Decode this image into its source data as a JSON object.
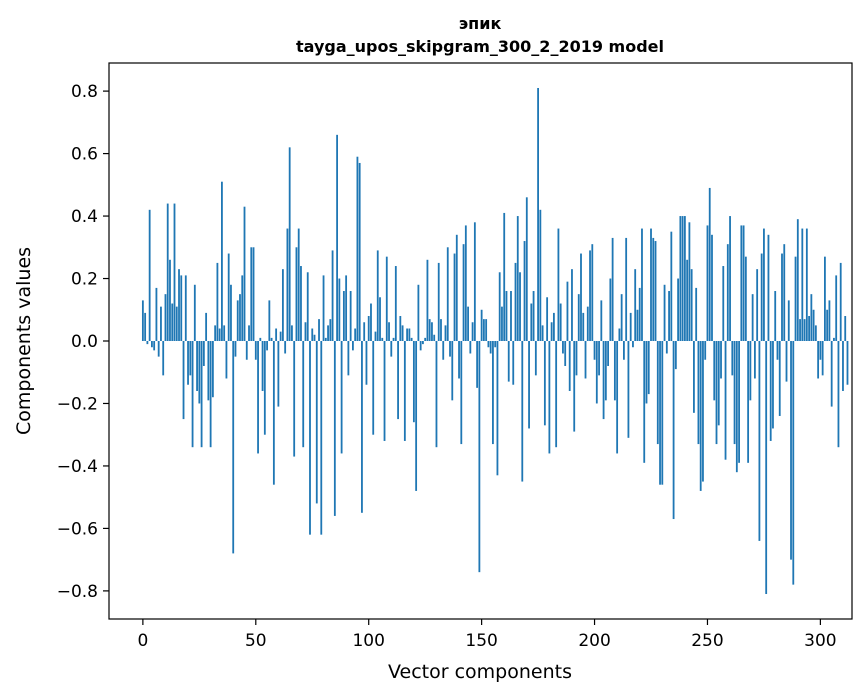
{
  "chart_data": {
    "type": "bar",
    "title_line1": "эпик",
    "title_line2": "tayga_upos_skipgram_300_2_2019 model",
    "xlabel": "Vector components",
    "ylabel": "Components values",
    "xlim": [
      -15,
      314
    ],
    "ylim": [
      -0.89,
      0.89
    ],
    "xticks": [
      0,
      50,
      100,
      150,
      200,
      250,
      300
    ],
    "xtick_labels": [
      "0",
      "50",
      "100",
      "150",
      "200",
      "250",
      "300"
    ],
    "yticks": [
      0.8,
      0.6,
      0.4,
      0.2,
      0.0,
      -0.2,
      -0.4,
      -0.6,
      -0.8
    ],
    "ytick_labels": [
      "0.8",
      "0.6",
      "0.4",
      "0.2",
      "0.0",
      "−0.2",
      "−0.4",
      "−0.6",
      "−0.8"
    ],
    "bar_color": "#1f77b4",
    "values": [
      0.13,
      0.09,
      -0.01,
      0.42,
      -0.02,
      -0.03,
      0.17,
      -0.05,
      0.11,
      -0.11,
      0.15,
      0.44,
      0.26,
      0.12,
      0.44,
      0.11,
      0.23,
      0.21,
      -0.25,
      0.21,
      -0.14,
      -0.11,
      -0.34,
      0.18,
      -0.16,
      -0.2,
      -0.34,
      -0.08,
      0.09,
      -0.19,
      -0.34,
      -0.18,
      0.05,
      0.25,
      0.04,
      0.51,
      0.05,
      -0.12,
      0.28,
      0.18,
      -0.68,
      -0.05,
      0.13,
      0.15,
      0.21,
      0.43,
      -0.06,
      0.05,
      0.3,
      0.3,
      -0.06,
      -0.36,
      0.01,
      -0.16,
      -0.3,
      -0.03,
      0.13,
      0.01,
      -0.46,
      0.04,
      -0.21,
      0.03,
      0.23,
      -0.04,
      0.36,
      0.62,
      0.05,
      -0.37,
      0.3,
      0.36,
      0.24,
      -0.34,
      0.06,
      0.22,
      -0.62,
      0.04,
      0.02,
      -0.52,
      0.07,
      -0.62,
      0.21,
      0.01,
      0.05,
      0.07,
      0.29,
      -0.56,
      0.66,
      0.2,
      -0.36,
      0.16,
      0.21,
      -0.11,
      0.16,
      -0.03,
      0.04,
      0.59,
      0.57,
      -0.55,
      0.06,
      -0.14,
      0.08,
      0.12,
      -0.3,
      0.03,
      0.29,
      0.14,
      0.01,
      -0.32,
      0.27,
      0.06,
      -0.05,
      0.01,
      0.24,
      -0.25,
      0.08,
      0.05,
      -0.32,
      0.04,
      0.04,
      0.01,
      -0.26,
      -0.48,
      0.18,
      -0.03,
      -0.01,
      0.01,
      0.26,
      0.07,
      0.06,
      0.02,
      -0.34,
      0.25,
      0.07,
      -0.06,
      0.05,
      0.3,
      -0.05,
      -0.19,
      0.28,
      0.34,
      -0.12,
      -0.33,
      0.31,
      0.37,
      0.11,
      -0.04,
      0.06,
      0.38,
      -0.15,
      -0.74,
      0.1,
      0.07,
      0.07,
      -0.02,
      -0.04,
      -0.33,
      -0.02,
      -0.43,
      0.22,
      0.11,
      0.41,
      0.16,
      -0.13,
      0.16,
      -0.14,
      0.25,
      0.4,
      0.22,
      -0.45,
      0.32,
      0.46,
      -0.28,
      0.12,
      0.16,
      -0.11,
      0.81,
      0.42,
      0.05,
      -0.27,
      0.14,
      -0.36,
      0.06,
      0.09,
      -0.34,
      0.36,
      0.12,
      -0.04,
      -0.08,
      0.19,
      -0.16,
      0.23,
      -0.29,
      -0.11,
      0.15,
      0.28,
      0.09,
      -0.12,
      0.11,
      0.29,
      0.31,
      -0.06,
      -0.2,
      -0.11,
      0.13,
      -0.25,
      -0.19,
      -0.08,
      0.2,
      0.33,
      -0.19,
      -0.36,
      0.04,
      0.15,
      -0.06,
      0.33,
      -0.31,
      0.09,
      -0.02,
      0.23,
      0.1,
      0.17,
      0.36,
      -0.39,
      -0.2,
      -0.17,
      0.36,
      0.33,
      0.32,
      -0.33,
      -0.46,
      -0.46,
      0.18,
      -0.04,
      0.16,
      0.35,
      -0.57,
      -0.09,
      0.2,
      0.4,
      0.4,
      0.4,
      0.26,
      0.38,
      0.23,
      -0.23,
      0.17,
      -0.33,
      -0.48,
      -0.45,
      -0.06,
      0.37,
      0.49,
      0.34,
      -0.19,
      -0.33,
      -0.27,
      -0.12,
      0.24,
      -0.38,
      0.31,
      0.4,
      -0.11,
      -0.33,
      -0.42,
      -0.39,
      0.37,
      0.37,
      0.27,
      -0.39,
      -0.19,
      0.15,
      -0.12,
      0.23,
      -0.64,
      0.28,
      0.36,
      -0.81,
      0.34,
      -0.32,
      -0.28,
      0.16,
      -0.06,
      -0.24,
      0.28,
      0.31,
      -0.13,
      0.13,
      -0.7,
      -0.78,
      0.27,
      0.39,
      0.07,
      0.36,
      0.07,
      0.36,
      0.08,
      0.15,
      0.1,
      0.05,
      -0.12,
      -0.06,
      -0.11,
      0.27,
      0.1,
      0.13,
      -0.21,
      0.01,
      0.21,
      -0.34,
      0.25,
      -0.16,
      0.08,
      -0.14
    ]
  }
}
